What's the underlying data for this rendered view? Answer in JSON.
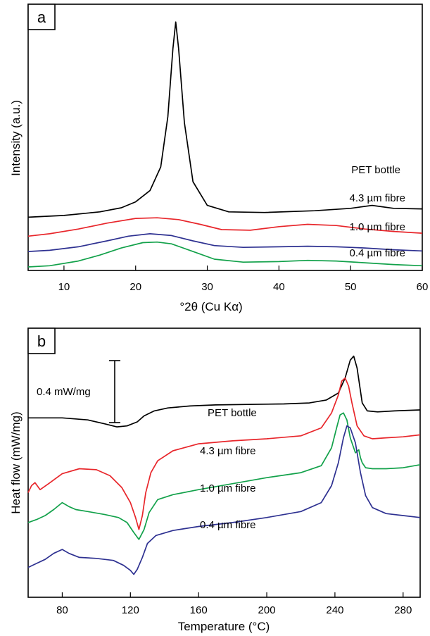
{
  "chart_data": [
    {
      "type": "line",
      "panel_label": "a",
      "xlabel": "°2θ (Cu Kα)",
      "ylabel": "Intensity (a.u.)",
      "xlim": [
        5,
        60
      ],
      "xticks": [
        10,
        20,
        30,
        40,
        50,
        60
      ],
      "grid": false,
      "series": [
        {
          "name": "PET bottle",
          "color": "#000000",
          "x": [
            5,
            10,
            15,
            18,
            20,
            22,
            23.5,
            24.5,
            25.2,
            25.6,
            26.0,
            26.8,
            28,
            30,
            33,
            38,
            45,
            50,
            53,
            56,
            60
          ],
          "y": [
            9.0,
            9.3,
            9.9,
            10.6,
            11.6,
            13.5,
            17.5,
            26.0,
            37.5,
            42.0,
            37.5,
            25.0,
            15.0,
            11.0,
            9.9,
            9.8,
            10.1,
            10.5,
            11.0,
            10.5,
            10.4
          ]
        },
        {
          "name": "4.3 µm fibre",
          "color": "#e8262b",
          "x": [
            5,
            8,
            12,
            16,
            20,
            23,
            26,
            29,
            32,
            36,
            40,
            44,
            48,
            52,
            56,
            60
          ],
          "y": [
            5.8,
            6.2,
            7.0,
            8.0,
            8.8,
            8.9,
            8.6,
            7.8,
            6.9,
            6.8,
            7.4,
            7.8,
            7.6,
            7.0,
            6.6,
            6.3
          ]
        },
        {
          "name": "1.0 µm fibre",
          "color": "#2e3191",
          "x": [
            5,
            8,
            12,
            16,
            19,
            22,
            25,
            28,
            31,
            35,
            40,
            44,
            48,
            52,
            56,
            60
          ],
          "y": [
            3.2,
            3.4,
            4.0,
            5.0,
            5.8,
            6.2,
            5.9,
            5.0,
            4.2,
            3.9,
            4.0,
            4.1,
            4.0,
            3.8,
            3.5,
            3.3
          ]
        },
        {
          "name": "0.4 µm fibre",
          "color": "#12a14a",
          "x": [
            5,
            8,
            12,
            15,
            18,
            21,
            23,
            25,
            28,
            31,
            35,
            40,
            44,
            48,
            52,
            56,
            60
          ],
          "y": [
            0.6,
            0.8,
            1.6,
            2.6,
            3.8,
            4.7,
            4.8,
            4.5,
            3.2,
            1.9,
            1.4,
            1.5,
            1.7,
            1.6,
            1.3,
            1.0,
            0.8
          ]
        }
      ]
    },
    {
      "type": "line",
      "panel_label": "b",
      "xlabel": "Temperature (°C)",
      "ylabel": "Heat flow (mW/mg)",
      "xlim": [
        60,
        290
      ],
      "xticks": [
        80,
        120,
        160,
        200,
        240,
        280
      ],
      "grid": false,
      "scale_bar_label": "0.4 mW/mg",
      "series": [
        {
          "name": "PET bottle",
          "color": "#000000",
          "x": [
            60,
            80,
            95,
            105,
            112,
            118,
            124,
            128,
            134,
            142,
            155,
            170,
            190,
            210,
            225,
            235,
            242,
            246,
            249,
            251,
            253,
            256,
            259,
            265,
            275,
            290
          ],
          "y": [
            0.8,
            0.8,
            0.78,
            0.74,
            0.71,
            0.72,
            0.76,
            0.82,
            0.87,
            0.9,
            0.92,
            0.93,
            0.935,
            0.94,
            0.95,
            0.98,
            1.05,
            1.2,
            1.38,
            1.42,
            1.3,
            0.95,
            0.87,
            0.86,
            0.87,
            0.88
          ]
        },
        {
          "name": "4.3 µm fibre",
          "color": "#e8262b",
          "x": [
            60,
            62,
            64,
            67,
            72,
            80,
            90,
            100,
            108,
            115,
            120,
            123,
            125,
            127,
            129,
            132,
            136,
            145,
            160,
            180,
            200,
            220,
            232,
            238,
            242,
            244,
            246,
            248,
            250,
            253,
            257,
            262,
            270,
            280,
            290
          ],
          "y": [
            0.05,
            0.12,
            0.15,
            0.08,
            0.14,
            0.24,
            0.29,
            0.28,
            0.22,
            0.1,
            -0.05,
            -0.2,
            -0.32,
            -0.18,
            0.05,
            0.25,
            0.37,
            0.47,
            0.54,
            0.57,
            0.59,
            0.62,
            0.7,
            0.85,
            1.03,
            1.17,
            1.2,
            1.12,
            0.95,
            0.72,
            0.62,
            0.59,
            0.6,
            0.61,
            0.63
          ]
        },
        {
          "name": "1.0 µm fibre",
          "color": "#12a14a",
          "x": [
            60,
            65,
            70,
            75,
            80,
            84,
            88,
            95,
            105,
            113,
            118,
            122,
            125,
            128,
            131,
            136,
            145,
            160,
            180,
            200,
            220,
            232,
            238,
            241,
            243,
            245,
            247,
            249,
            252,
            254,
            255,
            256,
            258,
            262,
            270,
            280,
            290
          ],
          "y": [
            -0.25,
            -0.22,
            -0.18,
            -0.12,
            -0.05,
            -0.09,
            -0.12,
            -0.14,
            -0.17,
            -0.2,
            -0.25,
            -0.35,
            -0.42,
            -0.32,
            -0.15,
            -0.02,
            0.03,
            0.08,
            0.14,
            0.2,
            0.25,
            0.32,
            0.5,
            0.7,
            0.83,
            0.85,
            0.78,
            0.6,
            0.45,
            0.48,
            0.4,
            0.35,
            0.3,
            0.29,
            0.29,
            0.3,
            0.33
          ]
        },
        {
          "name": "0.4 µm fibre",
          "color": "#2e3191",
          "x": [
            60,
            65,
            70,
            75,
            80,
            84,
            90,
            100,
            110,
            116,
            120,
            122,
            124,
            127,
            130,
            135,
            145,
            160,
            180,
            200,
            220,
            232,
            238,
            242,
            245,
            247,
            249,
            252,
            255,
            258,
            262,
            270,
            280,
            290
          ],
          "y": [
            -0.7,
            -0.66,
            -0.62,
            -0.56,
            -0.52,
            -0.56,
            -0.6,
            -0.61,
            -0.63,
            -0.68,
            -0.73,
            -0.77,
            -0.72,
            -0.6,
            -0.46,
            -0.38,
            -0.33,
            -0.29,
            -0.25,
            -0.2,
            -0.14,
            -0.05,
            0.12,
            0.35,
            0.6,
            0.72,
            0.7,
            0.55,
            0.25,
            0.02,
            -0.1,
            -0.16,
            -0.18,
            -0.2
          ]
        }
      ]
    }
  ]
}
